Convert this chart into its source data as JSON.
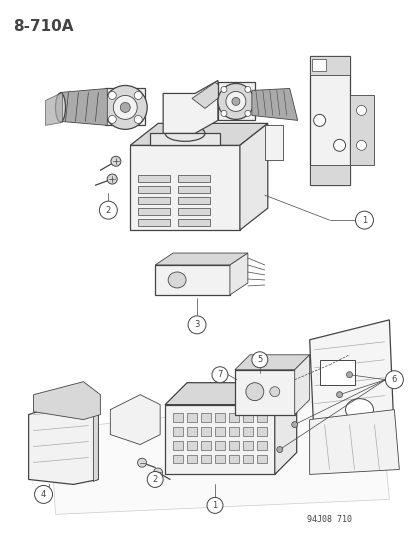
{
  "title": "8-710A",
  "watermark": "94J08 710",
  "bg_color": "#ffffff",
  "fg_color": "#1a1a1a",
  "fig_width": 4.14,
  "fig_height": 5.33,
  "dpi": 100,
  "lw_main": 0.9,
  "lw_thin": 0.5,
  "lw_detail": 0.6,
  "gray_light": "#cccccc",
  "gray_mid": "#aaaaaa",
  "gray_dark": "#444444",
  "gray_fill": "#e8e8e8",
  "gray_fill2": "#d8d8d8",
  "gray_fill3": "#f2f2f2"
}
